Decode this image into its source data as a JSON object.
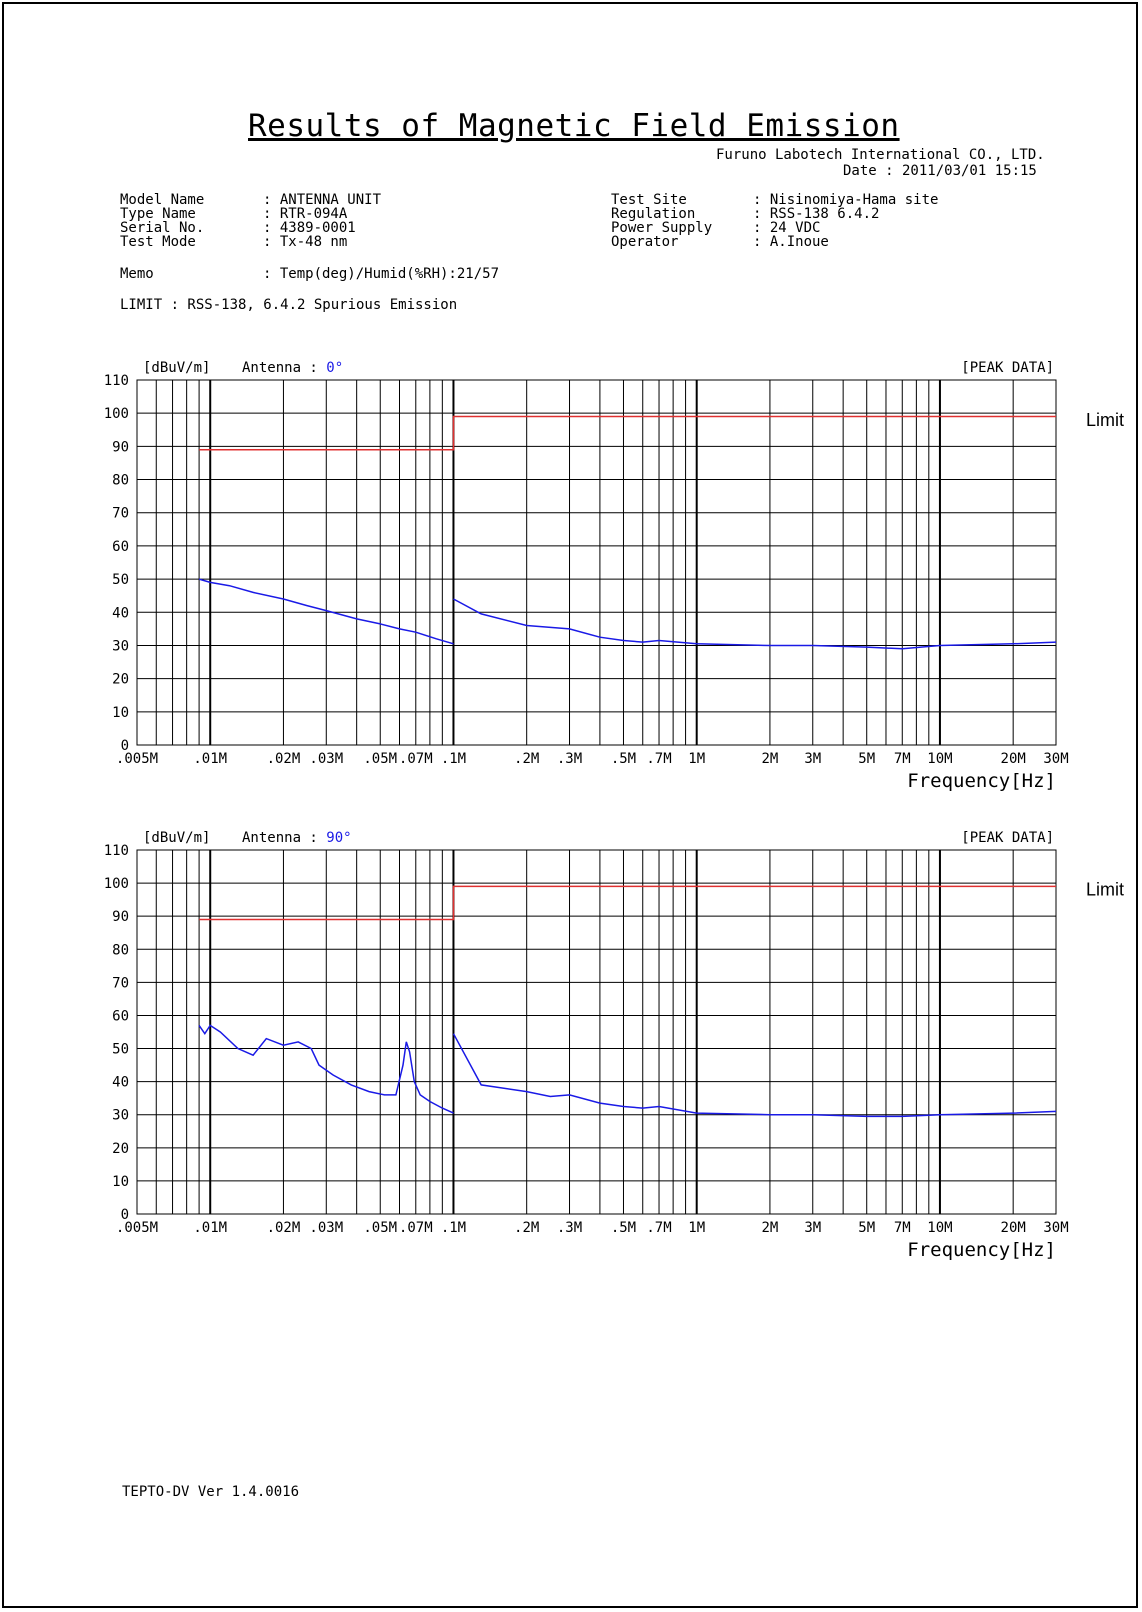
{
  "header": {
    "title": "Results of Magnetic Field Emission",
    "company": "Furuno Labotech International CO., LTD.",
    "date": "Date : 2011/03/01 15:15"
  },
  "info_left": [
    {
      "label": "Model Name",
      "value": ": ANTENNA UNIT"
    },
    {
      "label": "Type Name",
      "value": ": RTR-094A"
    },
    {
      "label": "Serial No.",
      "value": ": 4389-0001"
    },
    {
      "label": "Test Mode",
      "value": ": Tx-48 nm"
    }
  ],
  "info_right": [
    {
      "label": "Test Site",
      "value": ": Nisinomiya-Hama site"
    },
    {
      "label": "Regulation",
      "value": ": RSS-138 6.4.2"
    },
    {
      "label": "Power Supply",
      "value": ": 24 VDC"
    },
    {
      "label": "Operator",
      "value": ": A.Inoue"
    }
  ],
  "memo": {
    "label": "Memo",
    "value": ": Temp(deg)/Humid(%RH):21/57"
  },
  "limit_text": "LIMIT : RSS-138, 6.4.2  Spurious  Emission",
  "footer": {
    "version": "TEPTO-DV Ver 1.4.0016"
  },
  "colors": {
    "limit": "#e03030",
    "trace": "#1a1ae6",
    "angle": "#1a1ae6",
    "grid": "#000000"
  },
  "chart_data": [
    {
      "type": "line",
      "ylabel": "[dBuV/m]",
      "antenna_label": "Antenna : ",
      "antenna_value": "0°",
      "mode": "[PEAK DATA]",
      "xlabel": "Frequency[Hz]",
      "limit_side_label": "Limit",
      "x_scale": "log",
      "xlim": [
        5000,
        30000000
      ],
      "ylim": [
        0,
        110
      ],
      "y_ticks": [
        0,
        10,
        20,
        30,
        40,
        50,
        60,
        70,
        80,
        90,
        100,
        110
      ],
      "x_ticks": [
        {
          "v": 5000,
          "label": ".005M"
        },
        {
          "v": 10000,
          "label": ".01M"
        },
        {
          "v": 20000,
          "label": ".02M"
        },
        {
          "v": 30000,
          "label": ".03M"
        },
        {
          "v": 50000,
          "label": ".05M"
        },
        {
          "v": 70000,
          "label": ".07M"
        },
        {
          "v": 100000,
          "label": ".1M"
        },
        {
          "v": 200000,
          "label": ".2M"
        },
        {
          "v": 300000,
          "label": ".3M"
        },
        {
          "v": 500000,
          "label": ".5M"
        },
        {
          "v": 700000,
          "label": ".7M"
        },
        {
          "v": 1000000,
          "label": "1M"
        },
        {
          "v": 2000000,
          "label": "2M"
        },
        {
          "v": 3000000,
          "label": "3M"
        },
        {
          "v": 5000000,
          "label": "5M"
        },
        {
          "v": 7000000,
          "label": "7M"
        },
        {
          "v": 10000000,
          "label": "10M"
        },
        {
          "v": 20000000,
          "label": "20M"
        },
        {
          "v": 30000000,
          "label": "30M"
        }
      ],
      "limit": [
        {
          "x": 9000,
          "y": 89
        },
        {
          "x": 100000,
          "y": 89
        },
        {
          "x": 100000,
          "y": 99
        },
        {
          "x": 30000000,
          "y": 99
        }
      ],
      "series": [
        {
          "segments": [
            [
              {
                "x": 9000,
                "y": 50
              },
              {
                "x": 10000,
                "y": 49
              },
              {
                "x": 12000,
                "y": 48
              },
              {
                "x": 15000,
                "y": 46
              },
              {
                "x": 20000,
                "y": 44
              },
              {
                "x": 25000,
                "y": 42
              },
              {
                "x": 30000,
                "y": 40.5
              },
              {
                "x": 40000,
                "y": 38
              },
              {
                "x": 50000,
                "y": 36.5
              },
              {
                "x": 60000,
                "y": 35
              },
              {
                "x": 70000,
                "y": 34
              },
              {
                "x": 85000,
                "y": 32
              },
              {
                "x": 100000,
                "y": 30.5
              }
            ],
            [
              {
                "x": 100000,
                "y": 44
              },
              {
                "x": 130000,
                "y": 39.5
              },
              {
                "x": 200000,
                "y": 36
              },
              {
                "x": 300000,
                "y": 35
              },
              {
                "x": 400000,
                "y": 32.5
              },
              {
                "x": 500000,
                "y": 31.5
              },
              {
                "x": 600000,
                "y": 31
              },
              {
                "x": 700000,
                "y": 31.5
              },
              {
                "x": 1000000,
                "y": 30.5
              },
              {
                "x": 2000000,
                "y": 30
              },
              {
                "x": 3000000,
                "y": 30
              },
              {
                "x": 5000000,
                "y": 29.5
              },
              {
                "x": 7000000,
                "y": 29
              },
              {
                "x": 10000000,
                "y": 30
              },
              {
                "x": 20000000,
                "y": 30.5
              },
              {
                "x": 30000000,
                "y": 31
              }
            ]
          ]
        }
      ]
    },
    {
      "type": "line",
      "ylabel": "[dBuV/m]",
      "antenna_label": "Antenna : ",
      "antenna_value": "90°",
      "mode": "[PEAK DATA]",
      "xlabel": "Frequency[Hz]",
      "limit_side_label": "Limit",
      "x_scale": "log",
      "xlim": [
        5000,
        30000000
      ],
      "ylim": [
        0,
        110
      ],
      "y_ticks": [
        0,
        10,
        20,
        30,
        40,
        50,
        60,
        70,
        80,
        90,
        100,
        110
      ],
      "x_ticks": [
        {
          "v": 5000,
          "label": ".005M"
        },
        {
          "v": 10000,
          "label": ".01M"
        },
        {
          "v": 20000,
          "label": ".02M"
        },
        {
          "v": 30000,
          "label": ".03M"
        },
        {
          "v": 50000,
          "label": ".05M"
        },
        {
          "v": 70000,
          "label": ".07M"
        },
        {
          "v": 100000,
          "label": ".1M"
        },
        {
          "v": 200000,
          "label": ".2M"
        },
        {
          "v": 300000,
          "label": ".3M"
        },
        {
          "v": 500000,
          "label": ".5M"
        },
        {
          "v": 700000,
          "label": ".7M"
        },
        {
          "v": 1000000,
          "label": "1M"
        },
        {
          "v": 2000000,
          "label": "2M"
        },
        {
          "v": 3000000,
          "label": "3M"
        },
        {
          "v": 5000000,
          "label": "5M"
        },
        {
          "v": 7000000,
          "label": "7M"
        },
        {
          "v": 10000000,
          "label": "10M"
        },
        {
          "v": 20000000,
          "label": "20M"
        },
        {
          "v": 30000000,
          "label": "30M"
        }
      ],
      "limit": [
        {
          "x": 9000,
          "y": 89
        },
        {
          "x": 100000,
          "y": 89
        },
        {
          "x": 100000,
          "y": 99
        },
        {
          "x": 30000000,
          "y": 99
        }
      ],
      "series": [
        {
          "segments": [
            [
              {
                "x": 9000,
                "y": 57
              },
              {
                "x": 9500,
                "y": 54.5
              },
              {
                "x": 10000,
                "y": 57
              },
              {
                "x": 11000,
                "y": 55
              },
              {
                "x": 13000,
                "y": 50
              },
              {
                "x": 15000,
                "y": 48
              },
              {
                "x": 17000,
                "y": 53
              },
              {
                "x": 20000,
                "y": 51
              },
              {
                "x": 23000,
                "y": 52
              },
              {
                "x": 26000,
                "y": 50
              },
              {
                "x": 28000,
                "y": 45
              },
              {
                "x": 32000,
                "y": 42
              },
              {
                "x": 38000,
                "y": 39
              },
              {
                "x": 45000,
                "y": 37
              },
              {
                "x": 52000,
                "y": 36
              },
              {
                "x": 58000,
                "y": 36
              },
              {
                "x": 62000,
                "y": 45
              },
              {
                "x": 64000,
                "y": 52
              },
              {
                "x": 66000,
                "y": 49
              },
              {
                "x": 69000,
                "y": 40
              },
              {
                "x": 73000,
                "y": 36
              },
              {
                "x": 80000,
                "y": 34
              },
              {
                "x": 90000,
                "y": 32
              },
              {
                "x": 100000,
                "y": 30.5
              }
            ],
            [
              {
                "x": 100000,
                "y": 54.5
              },
              {
                "x": 130000,
                "y": 39
              },
              {
                "x": 200000,
                "y": 37
              },
              {
                "x": 250000,
                "y": 35.5
              },
              {
                "x": 300000,
                "y": 36
              },
              {
                "x": 400000,
                "y": 33.5
              },
              {
                "x": 500000,
                "y": 32.5
              },
              {
                "x": 600000,
                "y": 32
              },
              {
                "x": 700000,
                "y": 32.5
              },
              {
                "x": 1000000,
                "y": 30.5
              },
              {
                "x": 2000000,
                "y": 30
              },
              {
                "x": 3000000,
                "y": 30
              },
              {
                "x": 5000000,
                "y": 29.5
              },
              {
                "x": 7000000,
                "y": 29.5
              },
              {
                "x": 10000000,
                "y": 30
              },
              {
                "x": 20000000,
                "y": 30.5
              },
              {
                "x": 30000000,
                "y": 31
              }
            ]
          ]
        }
      ]
    }
  ]
}
